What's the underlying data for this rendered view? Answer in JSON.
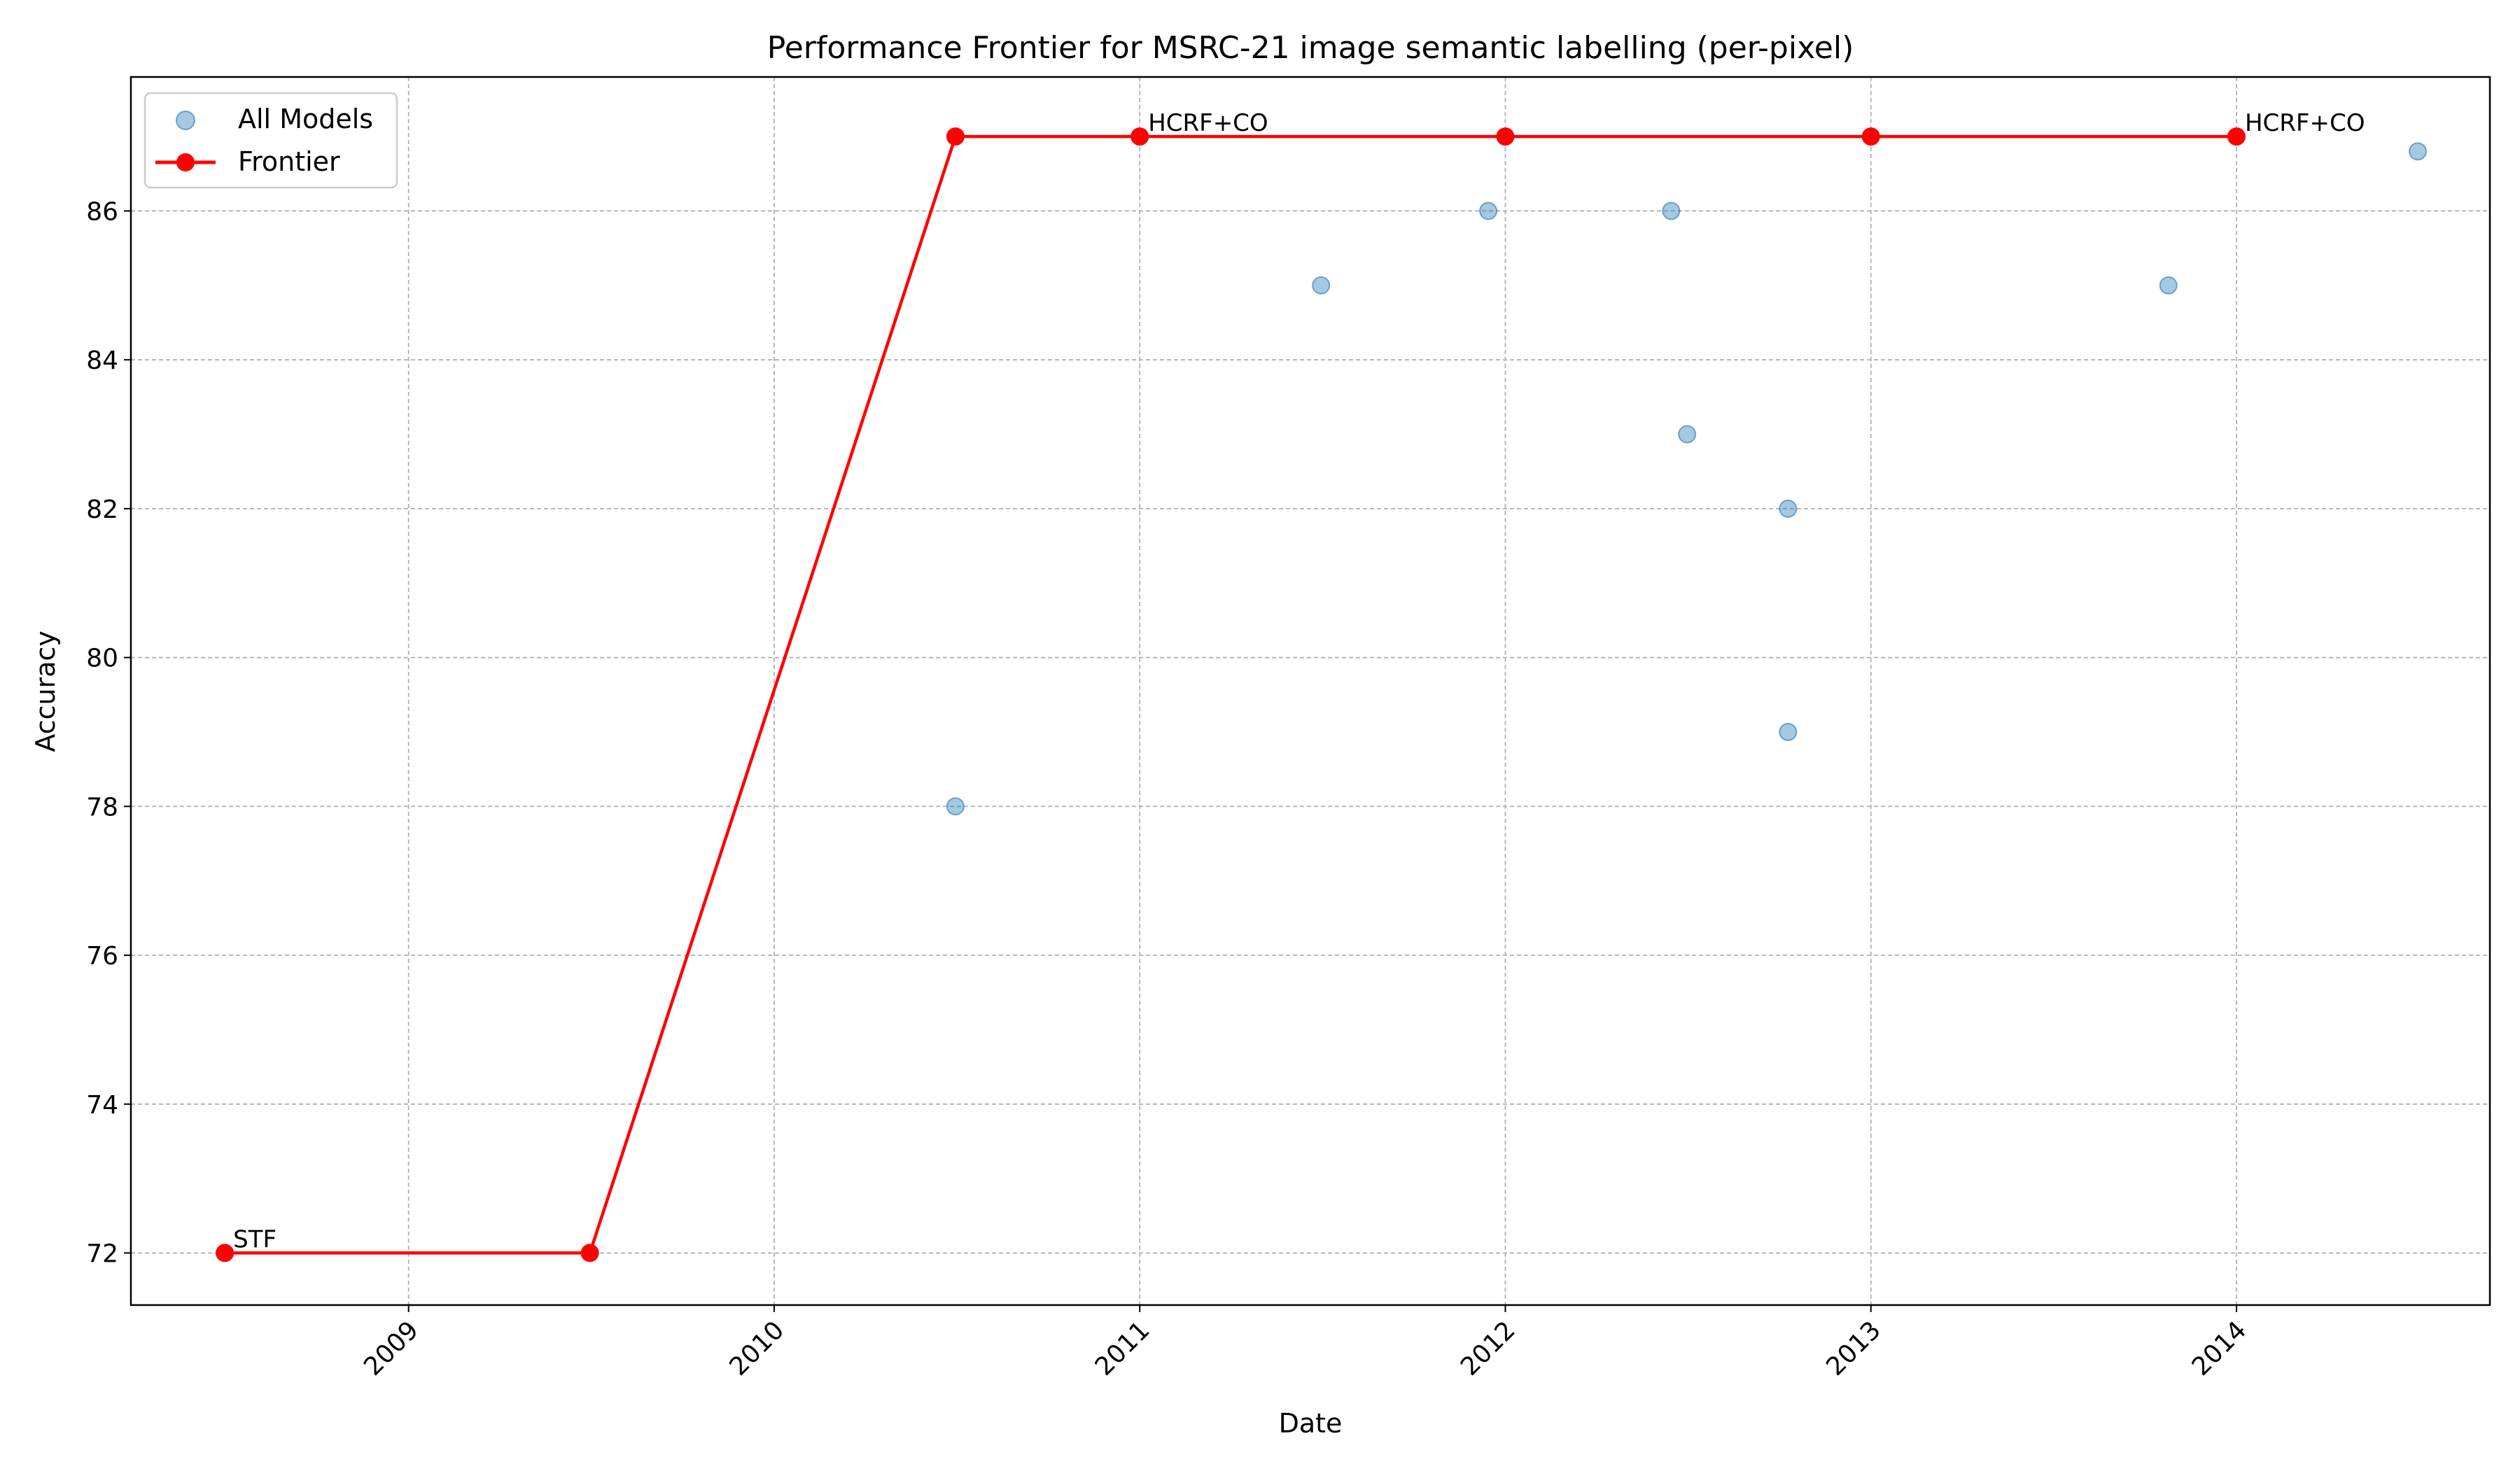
{
  "chart_data": {
    "type": "line",
    "title": "Performance Frontier for MSRC-21 image semantic labelling (per-pixel)",
    "xlabel": "Date",
    "ylabel": "Accuracy",
    "x_axis_type": "date",
    "xlim": [
      "2008-03-29",
      "2014-09-11"
    ],
    "ylim": [
      71.3,
      87.8
    ],
    "x_ticks": [
      "2009",
      "2010",
      "2011",
      "2012",
      "2013",
      "2014"
    ],
    "y_ticks": [
      72,
      74,
      76,
      78,
      80,
      82,
      84,
      86
    ],
    "grid": true,
    "legend": {
      "placement": "top-left",
      "entries": [
        "All Models",
        "Frontier"
      ]
    },
    "series": [
      {
        "name": "All Models",
        "type": "scatter",
        "color": "#1f77b4",
        "points": [
          {
            "x": "2010-07-01",
            "y": 78
          },
          {
            "x": "2011-07-01",
            "y": 85
          },
          {
            "x": "2011-12-15",
            "y": 86
          },
          {
            "x": "2012-06-15",
            "y": 86
          },
          {
            "x": "2012-07-01",
            "y": 83
          },
          {
            "x": "2012-10-10",
            "y": 82
          },
          {
            "x": "2012-10-10",
            "y": 79
          },
          {
            "x": "2013-10-25",
            "y": 85
          },
          {
            "x": "2014-07-01",
            "y": 86.8
          }
        ]
      },
      {
        "name": "Frontier",
        "type": "line",
        "color": "#ff0000",
        "points": [
          {
            "x": "2008-07-01",
            "y": 72
          },
          {
            "x": "2009-07-01",
            "y": 72
          },
          {
            "x": "2010-07-01",
            "y": 87
          },
          {
            "x": "2011-01-01",
            "y": 87
          },
          {
            "x": "2012-01-01",
            "y": 87
          },
          {
            "x": "2013-01-01",
            "y": 87
          },
          {
            "x": "2014-01-01",
            "y": 87
          }
        ]
      }
    ],
    "annotations": [
      {
        "text": "STF",
        "x": "2008-07-01",
        "y": 72
      },
      {
        "text": "HCRF+CO",
        "x": "2011-01-01",
        "y": 87
      },
      {
        "text": "HCRF+CO",
        "x": "2014-01-01",
        "y": 87
      }
    ]
  }
}
